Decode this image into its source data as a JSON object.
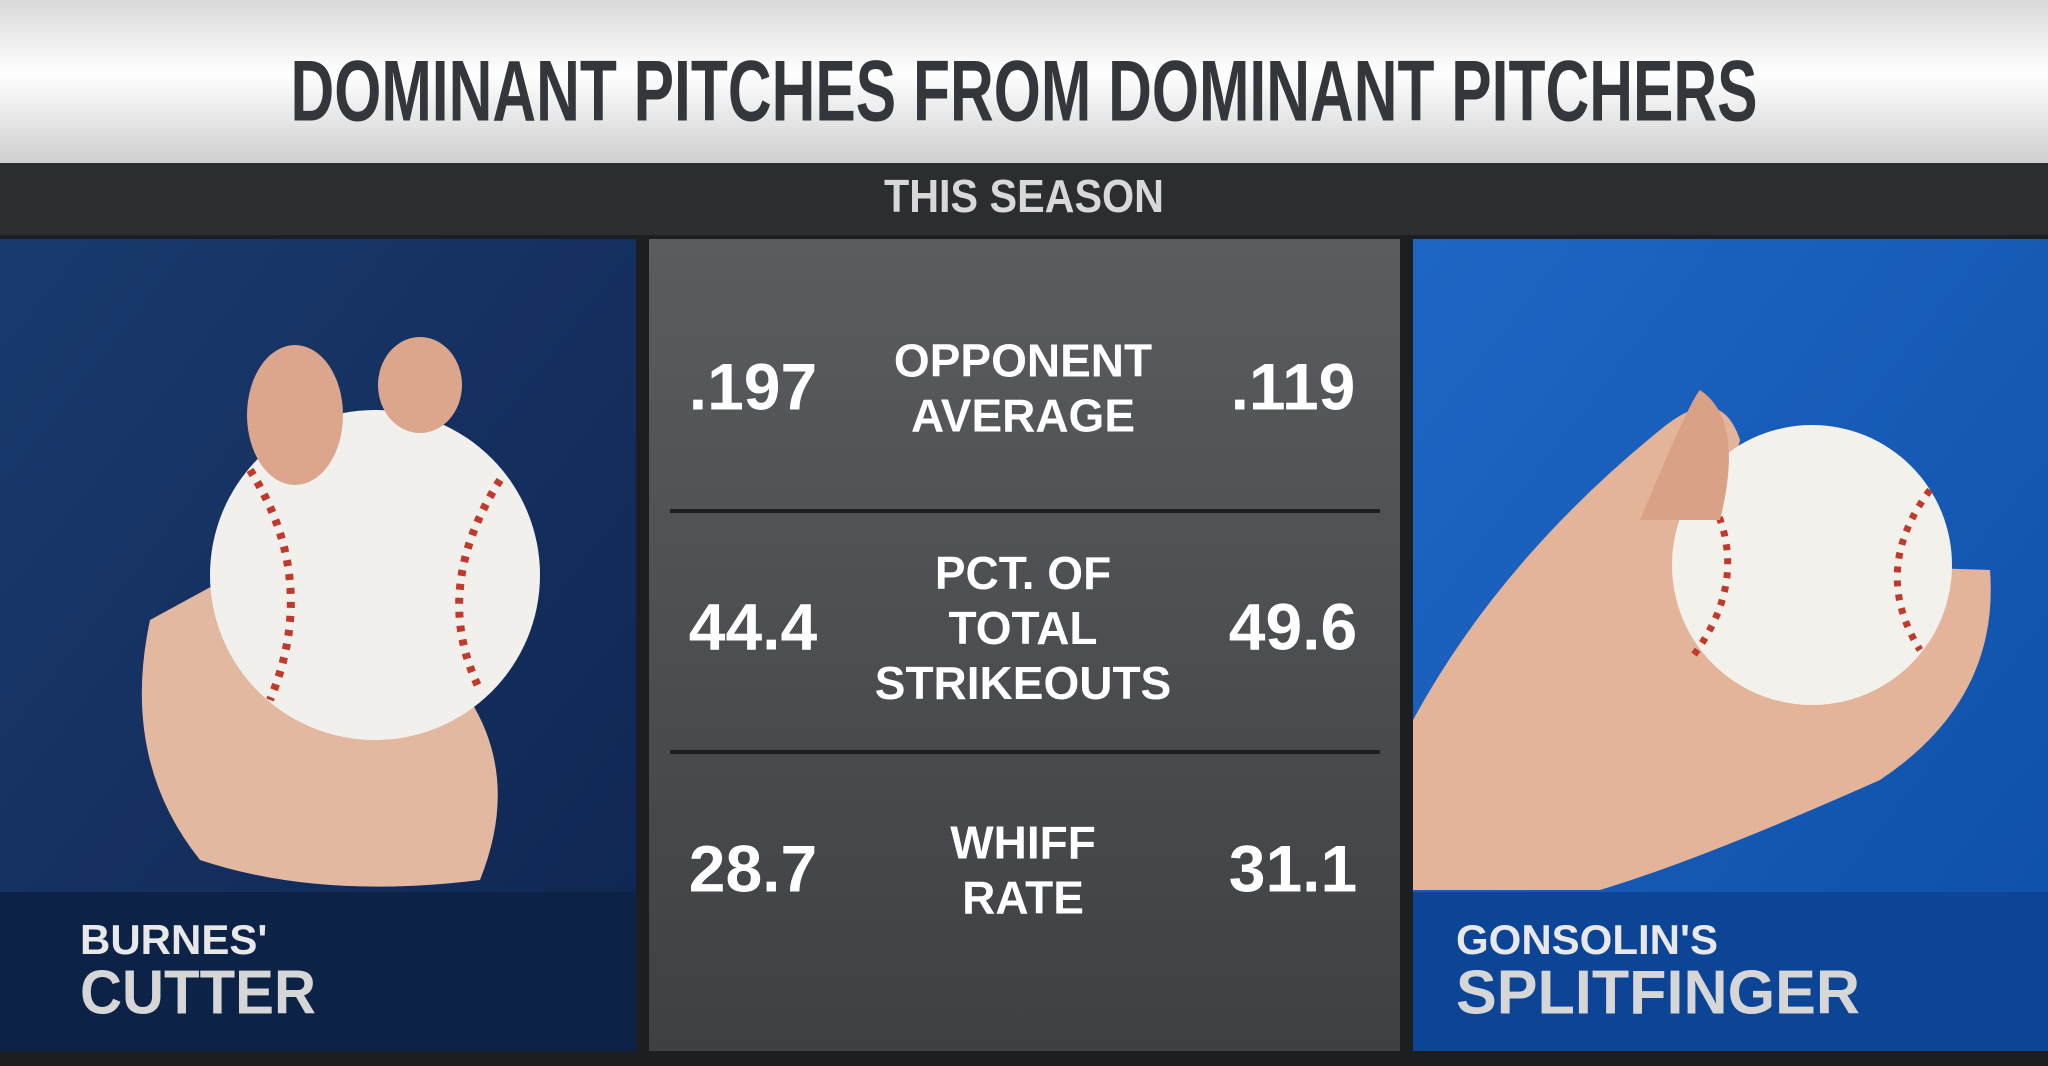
{
  "header": {
    "title": "DOMINANT PITCHES FROM DOMINANT PITCHERS",
    "subtitle": "THIS SEASON"
  },
  "left": {
    "pitcher": "BURNES'",
    "pitch": "CUTTER"
  },
  "right": {
    "pitcher": "GONSOLIN'S",
    "pitch": "SPLITFINGER"
  },
  "table": {
    "rows": [
      {
        "left": ".197",
        "label": [
          "OPPONENT",
          "AVERAGE"
        ],
        "right": ".119"
      },
      {
        "left": "44.4",
        "label": [
          "PCT. OF",
          "TOTAL",
          "STRIKEOUTS"
        ],
        "right": "49.6"
      },
      {
        "left": "28.7",
        "label": [
          "WHIFF",
          "RATE"
        ],
        "right": "31.1"
      }
    ]
  }
}
